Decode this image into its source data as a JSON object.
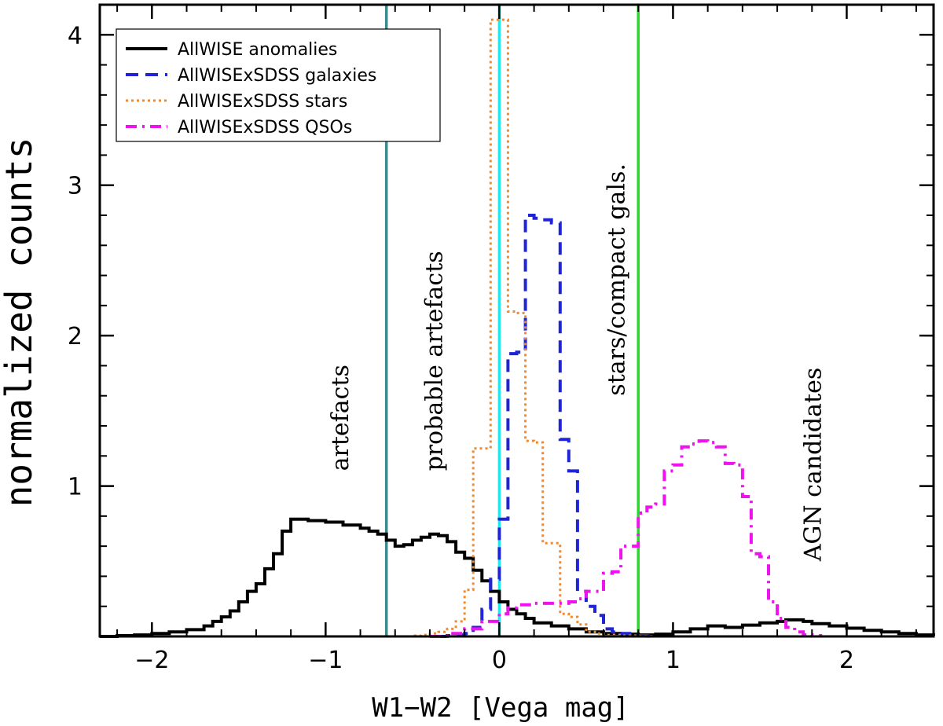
{
  "chart_data": {
    "type": "line",
    "title": "",
    "xlabel": "W1−W2 [Vega mag]",
    "ylabel": "normalized counts",
    "xlim": [
      -2.3,
      2.5
    ],
    "ylim": [
      0,
      4.2
    ],
    "xticks": [
      {
        "value": -2,
        "label": "−2"
      },
      {
        "value": -1,
        "label": "−1"
      },
      {
        "value": 0,
        "label": "0"
      },
      {
        "value": 1,
        "label": "1"
      },
      {
        "value": 2,
        "label": "2"
      }
    ],
    "yticks": [
      {
        "value": 1,
        "label": "1"
      },
      {
        "value": 2,
        "label": "2"
      },
      {
        "value": 3,
        "label": "3"
      },
      {
        "value": 4,
        "label": "4"
      }
    ],
    "grid": false,
    "legend_position": "top-left",
    "series": [
      {
        "name": "AllWISE anomalies",
        "color": "#000000",
        "dash": "solid",
        "x": [
          -2.3,
          -2.2,
          -2.1,
          -2.0,
          -1.9,
          -1.8,
          -1.7,
          -1.65,
          -1.6,
          -1.55,
          -1.5,
          -1.45,
          -1.4,
          -1.35,
          -1.3,
          -1.25,
          -1.2,
          -1.15,
          -1.1,
          -1.0,
          -0.9,
          -0.8,
          -0.75,
          -0.7,
          -0.65,
          -0.6,
          -0.55,
          -0.5,
          -0.45,
          -0.4,
          -0.35,
          -0.3,
          -0.25,
          -0.2,
          -0.15,
          -0.1,
          -0.05,
          0.0,
          0.05,
          0.1,
          0.15,
          0.2,
          0.3,
          0.4,
          0.5,
          0.6,
          0.7,
          0.8,
          0.9,
          1.0,
          1.1,
          1.2,
          1.3,
          1.4,
          1.5,
          1.6,
          1.65,
          1.7,
          1.75,
          1.8,
          1.9,
          2.0,
          2.1,
          2.2,
          2.3,
          2.4,
          2.5
        ],
        "y": [
          0.0,
          0.005,
          0.01,
          0.02,
          0.03,
          0.045,
          0.07,
          0.1,
          0.13,
          0.17,
          0.23,
          0.3,
          0.35,
          0.45,
          0.55,
          0.7,
          0.78,
          0.78,
          0.77,
          0.76,
          0.74,
          0.72,
          0.7,
          0.68,
          0.64,
          0.6,
          0.61,
          0.64,
          0.66,
          0.68,
          0.67,
          0.63,
          0.56,
          0.52,
          0.44,
          0.37,
          0.3,
          0.23,
          0.18,
          0.15,
          0.12,
          0.09,
          0.07,
          0.05,
          0.03,
          0.02,
          0.015,
          0.01,
          0.015,
          0.03,
          0.05,
          0.07,
          0.06,
          0.075,
          0.09,
          0.1,
          0.11,
          0.11,
          0.1,
          0.085,
          0.07,
          0.055,
          0.04,
          0.03,
          0.02,
          0.01,
          0.005
        ]
      },
      {
        "name": "AllWISExSDSS galaxies",
        "color": "#1f24d6",
        "dash": "dashed",
        "x": [
          -0.35,
          -0.3,
          -0.25,
          -0.2,
          -0.15,
          -0.1,
          -0.05,
          0.0,
          0.05,
          0.1,
          0.15,
          0.2,
          0.25,
          0.3,
          0.35,
          0.4,
          0.45,
          0.5,
          0.55,
          0.6,
          0.65,
          0.7,
          0.75,
          0.8,
          0.85,
          0.9
        ],
        "y": [
          0.0,
          0.005,
          0.01,
          0.02,
          0.06,
          0.18,
          0.38,
          0.78,
          1.88,
          1.89,
          2.8,
          2.78,
          2.77,
          2.75,
          1.31,
          1.1,
          0.3,
          0.2,
          0.14,
          0.05,
          0.03,
          0.02,
          0.01,
          0.005,
          0.002,
          0.0
        ]
      },
      {
        "name": "AllWISExSDSS stars",
        "color": "#ef8a2e",
        "dash": "dotted",
        "x": [
          -0.55,
          -0.5,
          -0.45,
          -0.4,
          -0.35,
          -0.3,
          -0.25,
          -0.2,
          -0.15,
          -0.1,
          -0.05,
          0.0,
          0.05,
          0.1,
          0.15,
          0.2,
          0.25,
          0.3,
          0.35,
          0.4,
          0.45,
          0.5,
          0.55,
          0.6,
          0.7,
          0.8,
          0.9
        ],
        "y": [
          0.0,
          0.005,
          0.01,
          0.02,
          0.03,
          0.05,
          0.1,
          0.31,
          1.25,
          1.25,
          4.1,
          4.1,
          2.16,
          2.15,
          1.3,
          1.29,
          0.62,
          0.62,
          0.15,
          0.13,
          0.08,
          0.03,
          0.02,
          0.01,
          0.005,
          0.002,
          0.0
        ]
      },
      {
        "name": "AllWISExSDSS QSOs",
        "color": "#ee12ee",
        "dash": "dashdot",
        "x": [
          -0.4,
          -0.3,
          -0.2,
          -0.1,
          0.0,
          0.05,
          0.1,
          0.2,
          0.3,
          0.4,
          0.45,
          0.5,
          0.55,
          0.6,
          0.65,
          0.7,
          0.75,
          0.8,
          0.85,
          0.9,
          0.95,
          1.0,
          1.05,
          1.1,
          1.15,
          1.2,
          1.25,
          1.3,
          1.35,
          1.4,
          1.45,
          1.5,
          1.55,
          1.6,
          1.65,
          1.7,
          1.75,
          1.8,
          1.85
        ],
        "y": [
          0.0,
          0.02,
          0.05,
          0.1,
          0.15,
          0.19,
          0.21,
          0.22,
          0.22,
          0.23,
          0.25,
          0.3,
          0.3,
          0.42,
          0.43,
          0.6,
          0.6,
          0.82,
          0.86,
          0.88,
          1.1,
          1.14,
          1.26,
          1.28,
          1.3,
          1.29,
          1.26,
          1.15,
          1.14,
          0.93,
          0.55,
          0.53,
          0.23,
          0.12,
          0.06,
          0.03,
          0.01,
          0.005,
          0.0
        ]
      }
    ],
    "vertical_lines": [
      {
        "x": -0.65,
        "color": "#3b8b8e"
      },
      {
        "x": 0.0,
        "color": "#22e8ee"
      },
      {
        "x": 0.8,
        "color": "#22dd22"
      }
    ],
    "annotations": [
      {
        "text": "artefacts",
        "x": -0.87,
        "y": 1.1
      },
      {
        "text": "probable artefacts",
        "x": -0.33,
        "y": 1.1
      },
      {
        "text": "stars/compact gals.",
        "x": 0.72,
        "y": 1.6
      },
      {
        "text": "AGN candidates",
        "x": 1.85,
        "y": 0.5
      }
    ]
  }
}
